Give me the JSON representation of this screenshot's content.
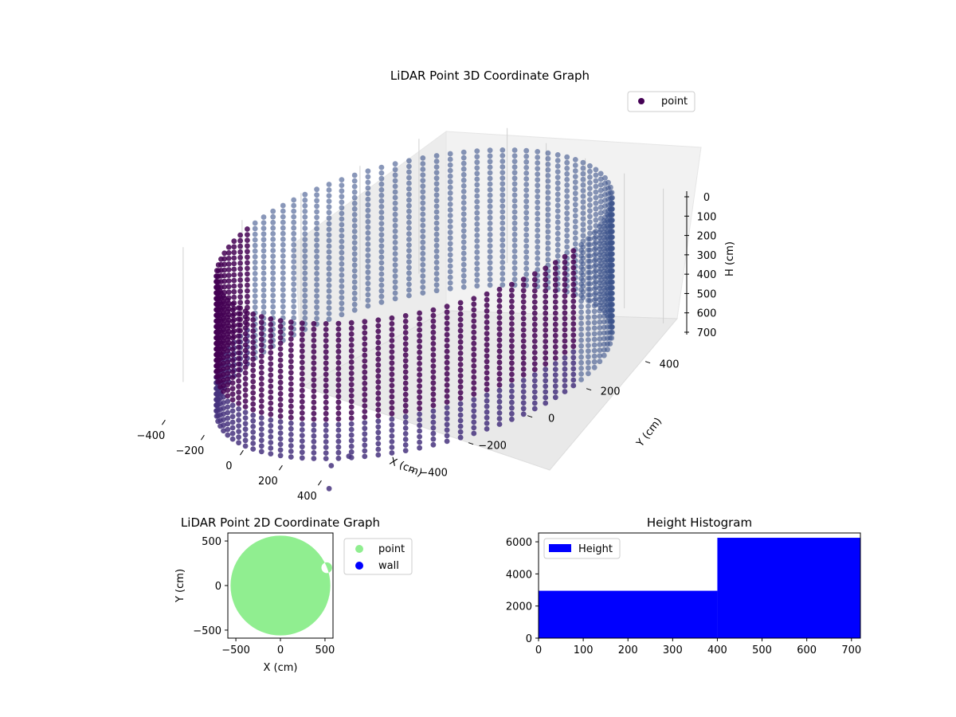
{
  "chart_data": [
    {
      "type": "scatter",
      "projection": "3d",
      "title": "LiDAR Point 3D Coordinate Graph",
      "xlabel": "X (cm)",
      "ylabel": "Y (cm)",
      "zlabel": "H (cm)",
      "xlim": [
        -580,
        580
      ],
      "ylim": [
        -580,
        580
      ],
      "zlim": [
        0,
        720
      ],
      "z_inverted": true,
      "grid": true,
      "legend": {
        "position": "top-right",
        "entries": [
          "point"
        ]
      },
      "x_ticks": [
        "−400",
        "−200",
        "0",
        "200",
        "400"
      ],
      "x_tick_values": [
        -400,
        -200,
        0,
        200,
        400
      ],
      "y_ticks": [
        "−400",
        "−200",
        "0",
        "200",
        "400"
      ],
      "y_tick_values": [
        -400,
        -200,
        0,
        200,
        400
      ],
      "z_ticks": [
        "0",
        "100",
        "200",
        "300",
        "400",
        "500",
        "600",
        "700"
      ],
      "z_tick_values": [
        0,
        100,
        200,
        300,
        400,
        500,
        600,
        700
      ],
      "colors": {
        "point_dark": "#440154",
        "point_mid": "#46337e",
        "point_light": "#3b528b"
      },
      "series": [
        {
          "name": "point",
          "shape": "cylinder",
          "radius": 560,
          "angle_steps": 90,
          "height_steps": 24,
          "h_range": [
            0,
            720
          ],
          "outliers": [
            {
              "x": 360,
              "y": -520,
              "h": 700
            },
            {
              "x": 420,
              "y": -500,
              "h": 640
            },
            {
              "x": 470,
              "y": -600,
              "h": 720
            }
          ]
        }
      ]
    },
    {
      "type": "scatter",
      "title": "LiDAR Point 2D Coordinate Graph",
      "xlabel": "X (cm)",
      "ylabel": "Y (cm)",
      "xlim": [
        -590,
        590
      ],
      "ylim": [
        -590,
        590
      ],
      "x_ticks": [
        "−500",
        "0",
        "500"
      ],
      "x_tick_values": [
        -500,
        0,
        500
      ],
      "y_ticks": [
        "500",
        "0",
        "−500"
      ],
      "y_tick_values": [
        500,
        0,
        -500
      ],
      "legend": {
        "position": "outside-right",
        "entries": [
          "point",
          "wall"
        ]
      },
      "colors": {
        "point": "#90ee90",
        "wall": "#0000ff"
      },
      "series": [
        {
          "name": "point",
          "region": "disk-with-hole",
          "radius": 560,
          "hole": {
            "x": 520,
            "y": 200,
            "r": 60
          }
        },
        {
          "name": "wall",
          "values": []
        }
      ]
    },
    {
      "type": "bar",
      "subtype": "histogram",
      "title": "Height Histogram",
      "xlim": [
        0,
        720
      ],
      "ylim": [
        0,
        6550
      ],
      "x_ticks": [
        "0",
        "100",
        "200",
        "300",
        "400",
        "500",
        "600",
        "700"
      ],
      "x_tick_values": [
        0,
        100,
        200,
        300,
        400,
        500,
        600,
        700
      ],
      "y_ticks": [
        "0",
        "2000",
        "4000",
        "6000"
      ],
      "y_tick_values": [
        0,
        2000,
        4000,
        6000
      ],
      "legend": {
        "position": "top-left",
        "entries": [
          "Height"
        ]
      },
      "color": "#0000ff",
      "bins": [
        {
          "start": 0,
          "end": 400,
          "count": 2950
        },
        {
          "start": 400,
          "end": 720,
          "count": 6250
        }
      ]
    }
  ]
}
